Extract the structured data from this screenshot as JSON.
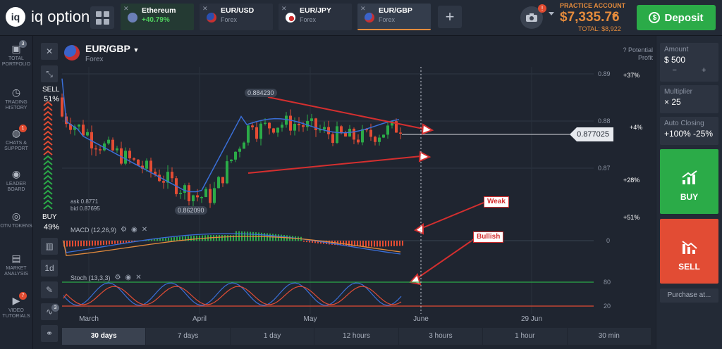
{
  "app": {
    "logo_text": "iq option"
  },
  "tabs": [
    {
      "name": "Ethereum",
      "sub": "+40.79%"
    },
    {
      "name": "EUR/USD",
      "sub": "Forex"
    },
    {
      "name": "EUR/JPY",
      "sub": "Forex"
    },
    {
      "name": "EUR/GBP",
      "sub": "Forex"
    }
  ],
  "camera_badge": "!",
  "account": {
    "label": "PRACTICE ACCOUNT",
    "balance": "$7,335.76",
    "total": "TOTAL: $8,922"
  },
  "deposit_label": "Deposit",
  "sidebar": [
    {
      "label": "TOTAL PORTFOLIO",
      "badge": "3"
    },
    {
      "label": "TRADING HISTORY",
      "badge": ""
    },
    {
      "label": "CHATS & SUPPORT",
      "badge": "1"
    },
    {
      "label": "LEADER BOARD",
      "badge": ""
    },
    {
      "label": "OTN TOKENS",
      "badge": ""
    },
    {
      "label": "MARKET ANALYSIS",
      "badge": ""
    },
    {
      "label": "VIDEO TUTORIALS",
      "badge": "7"
    }
  ],
  "chart": {
    "pair": "EUR/GBP",
    "pair_type": "Forex",
    "potential_profit": "Potential Profit",
    "sell_label": "SELL",
    "sell_pct": "51%",
    "buy_label": "BUY",
    "buy_pct": "49%",
    "ask": "ask 0.8771",
    "bid": "bid 0.87695",
    "high_label": "0.884230",
    "low_label": "0.862090",
    "current_price": "0.877025",
    "macd_label": "MACD (12,26,9)",
    "stoch_label": "Stoch (13,3,3)",
    "annot_weak": "Weak",
    "annot_bullish": "Bullish",
    "tool_1d": "1d",
    "tool_badge": "3",
    "profits": [
      "+37%",
      "+4%",
      "+28%",
      "+51%"
    ]
  },
  "chart_data": {
    "type": "candlestick",
    "y_ticks": [
      "0.89",
      "0.88",
      "0.87"
    ],
    "macd_ticks": [
      "0"
    ],
    "stoch_ticks": [
      "80",
      "20"
    ],
    "x_labels": [
      "March",
      "April",
      "May",
      "June",
      "29 Jun"
    ],
    "high": 0.88423,
    "low": 0.86209,
    "last": 0.877025
  },
  "timeframes": [
    "30 days",
    "7 days",
    "1 day",
    "12 hours",
    "3 hours",
    "1 hour",
    "30 min"
  ],
  "right_panel": {
    "amount_label": "Amount",
    "amount_value": "$ 500",
    "multiplier_label": "Multiplier",
    "multiplier_value": "× 25",
    "auto_label": "Auto Closing",
    "auto_value": "+100% -25%",
    "buy": "BUY",
    "sell": "SELL",
    "purchase": "Purchase at..."
  },
  "colors": {
    "up": "#2bab48",
    "down": "#e24c34",
    "accent": "#e48b3c",
    "annotation": "#d42f2f"
  }
}
